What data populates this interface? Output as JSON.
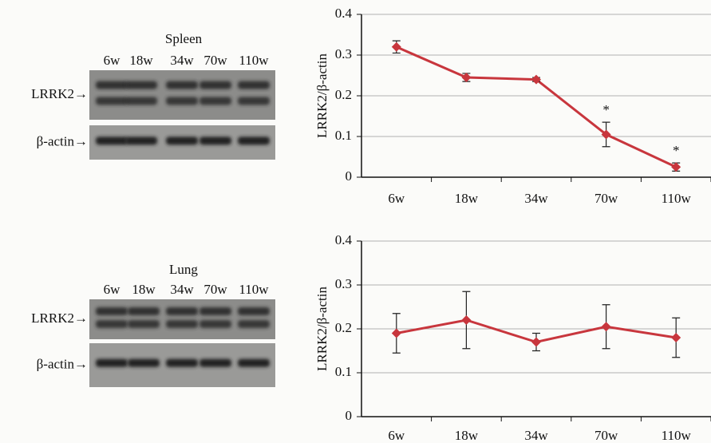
{
  "blots": [
    {
      "title": "Spleen",
      "lanes": [
        "6w",
        "18w",
        "34w",
        "70w",
        "110w"
      ],
      "rows": [
        "LRRK2→",
        "β-actin→"
      ]
    },
    {
      "title": "Lung",
      "lanes": [
        "6w",
        "18w",
        "34w",
        "70w",
        "110w"
      ],
      "rows": [
        "LRRK2→",
        "β-actin→"
      ]
    }
  ],
  "chart_data": [
    {
      "type": "line",
      "y_label": "LRRK2/β-actin",
      "categories": [
        "6w",
        "18w",
        "34w",
        "70w",
        "110w"
      ],
      "series": [
        {
          "color": "#c8363d",
          "values": [
            0.32,
            0.245,
            0.24,
            0.105,
            0.025
          ],
          "errors": [
            0.015,
            0.01,
            0.005,
            0.03,
            0.01
          ]
        }
      ],
      "annotations": [
        null,
        null,
        null,
        "*",
        "*"
      ],
      "ylim": [
        0,
        0.4
      ],
      "yticks": [
        0,
        0.1,
        0.2,
        0.3,
        0.4
      ],
      "grid": true
    },
    {
      "type": "line",
      "y_label": "LRRK2/β-actin",
      "categories": [
        "6w",
        "18w",
        "34w",
        "70w",
        "110w"
      ],
      "series": [
        {
          "color": "#c8363d",
          "values": [
            0.19,
            0.22,
            0.17,
            0.205,
            0.18
          ],
          "errors": [
            0.045,
            0.065,
            0.02,
            0.05,
            0.045
          ]
        }
      ],
      "ylim": [
        0,
        0.4
      ],
      "yticks": [
        0,
        0.1,
        0.2,
        0.3,
        0.4
      ],
      "grid": true
    }
  ]
}
